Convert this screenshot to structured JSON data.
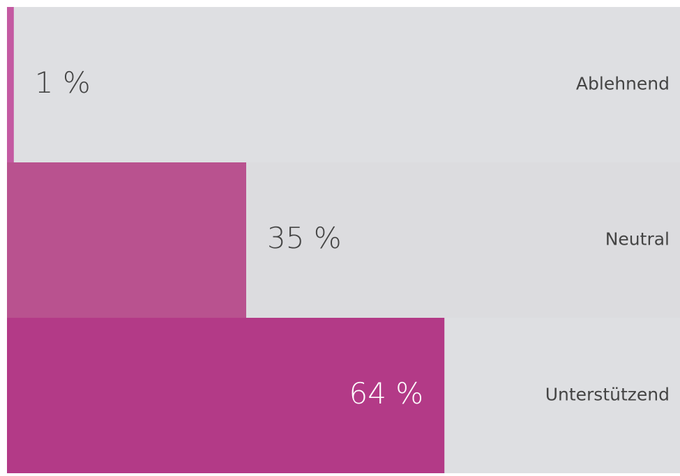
{
  "chart_data": {
    "type": "bar",
    "orientation": "horizontal",
    "categories": [
      "Ablehnend",
      "Neutral",
      "Unterstützend"
    ],
    "values": [
      1,
      35,
      64
    ],
    "value_labels": [
      "1 %",
      "35 %",
      "64 %"
    ],
    "colors": [
      "#c45aa2",
      "#b9528f",
      "#b33a87"
    ],
    "xlim": [
      0,
      100
    ]
  }
}
